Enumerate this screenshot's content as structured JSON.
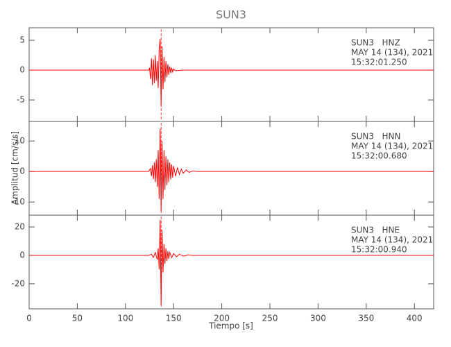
{
  "chart_data": {
    "type": "line",
    "title": "SUN3",
    "xlabel": "Tiempo [s]",
    "ylabel": "Amplitud [cm/s/s]",
    "color": "#ff0000",
    "xlim": [
      0,
      420
    ],
    "xticks": [
      0,
      50,
      100,
      150,
      200,
      250,
      300,
      350,
      400
    ],
    "panels": [
      {
        "ylim": [
          -8.6,
          7.1
        ],
        "yticks": [
          -5,
          0,
          5
        ],
        "vline": 137,
        "annotation": [
          "SUN3   HNZ",
          "MAY 14 (134), 2021",
          "15:32:01.250"
        ],
        "x": [
          0,
          20,
          40,
          60,
          80,
          100,
          120,
          124,
          125,
          126,
          127,
          128,
          129,
          130,
          131,
          132,
          133,
          134,
          135,
          136,
          137,
          138,
          139,
          140,
          141,
          142,
          143,
          144,
          145,
          146,
          147,
          148,
          149,
          150,
          152,
          160,
          180,
          200,
          220,
          240,
          260,
          280,
          300,
          320,
          340,
          360,
          380,
          400,
          420
        ],
        "values": [
          0,
          0,
          0,
          0,
          0,
          0,
          0,
          0,
          0.3,
          -1.5,
          2,
          -2.5,
          1.8,
          -2.2,
          2.5,
          -1.8,
          1.5,
          -3,
          3.5,
          5.2,
          -6,
          4,
          -3.2,
          2.2,
          -2,
          1.5,
          -1.2,
          1,
          -0.8,
          0.6,
          -0.5,
          0.4,
          -0.3,
          0.2,
          -0.1,
          0,
          0,
          0,
          0,
          0,
          0,
          0,
          0,
          0,
          0,
          0,
          0,
          0,
          0
        ]
      },
      {
        "ylim": [
          -14.3,
          16.4
        ],
        "yticks": [
          -10,
          0,
          10
        ],
        "vline": 137,
        "annotation": [
          "SUN3   HNN",
          "MAY 14 (134), 2021",
          "15:32:00.680"
        ],
        "x": [
          0,
          20,
          40,
          60,
          80,
          100,
          120,
          124,
          126,
          127,
          128,
          129,
          130,
          131,
          132,
          133,
          134,
          135,
          136,
          137,
          138,
          139,
          140,
          141,
          142,
          143,
          144,
          145,
          146,
          147,
          148,
          149,
          150,
          152,
          154,
          156,
          158,
          160,
          163,
          166,
          170,
          175,
          200,
          220,
          240,
          260,
          280,
          300,
          320,
          340,
          360,
          380,
          400,
          420
        ],
        "values": [
          0,
          0,
          0,
          0,
          0,
          0,
          0,
          0,
          1,
          -1.5,
          2,
          -2.5,
          3,
          -3.5,
          4,
          -5,
          7,
          -9,
          14,
          -13,
          10,
          -9,
          7,
          -6,
          5,
          -4.5,
          4,
          -3.5,
          3,
          -2.6,
          2.3,
          -2,
          1.8,
          -1.5,
          1.3,
          -1,
          0.8,
          -0.6,
          0.5,
          -0.3,
          0.2,
          0,
          0,
          0,
          0,
          0,
          0,
          0,
          0,
          0,
          0,
          0,
          0,
          0
        ]
      },
      {
        "ylim": [
          -37.6,
          28.3
        ],
        "yticks": [
          -20,
          0,
          20
        ],
        "vline": 137,
        "annotation": [
          "SUN3   HNE",
          "MAY 14 (134), 2021",
          "15:32:00.940"
        ],
        "x": [
          0,
          20,
          40,
          60,
          80,
          100,
          120,
          124,
          127,
          129,
          131,
          133,
          134,
          135,
          136,
          137,
          138,
          139,
          140,
          141,
          142,
          143,
          144,
          145,
          146,
          148,
          150,
          153,
          156,
          160,
          165,
          170,
          180,
          200,
          220,
          240,
          260,
          280,
          300,
          320,
          340,
          360,
          380,
          400,
          420
        ],
        "values": [
          0,
          0,
          0,
          0,
          0,
          0,
          0,
          0,
          0.8,
          -1.5,
          2,
          -3,
          5,
          -10,
          25,
          -35,
          18,
          -12,
          8,
          -6,
          5,
          -4,
          3,
          -2.5,
          2,
          -1.6,
          1.3,
          -1,
          0.8,
          -0.5,
          0.3,
          0,
          0,
          0,
          0,
          0,
          0,
          0,
          0,
          0,
          0,
          0,
          0,
          0,
          0
        ]
      }
    ]
  }
}
